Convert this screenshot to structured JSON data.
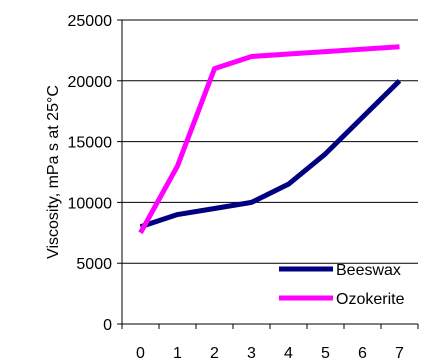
{
  "chart_data": {
    "type": "line",
    "title": "",
    "xlabel": "",
    "ylabel": "Viscosity, mPa s at 25°C",
    "xlim": [
      -0.5,
      7.5
    ],
    "ylim": [
      0,
      25000
    ],
    "x_ticks": [
      0,
      1,
      2,
      3,
      4,
      5,
      6,
      7
    ],
    "y_ticks": [
      0,
      5000,
      10000,
      15000,
      20000,
      25000
    ],
    "grid": "horizontal",
    "legend_position": "bottom-right",
    "series": [
      {
        "name": "Beeswax",
        "color": "#000080",
        "x": [
          0,
          1,
          2,
          3,
          4,
          5,
          6,
          7
        ],
        "y": [
          8000,
          9000,
          9500,
          10000,
          11500,
          14000,
          17000,
          20000
        ]
      },
      {
        "name": "Ozokerite",
        "color": "#FF00FF",
        "x": [
          0,
          1,
          2,
          3,
          4,
          5,
          6,
          7
        ],
        "y": [
          7500,
          13000,
          21000,
          22000,
          22200,
          22400,
          22600,
          22800
        ]
      }
    ]
  }
}
